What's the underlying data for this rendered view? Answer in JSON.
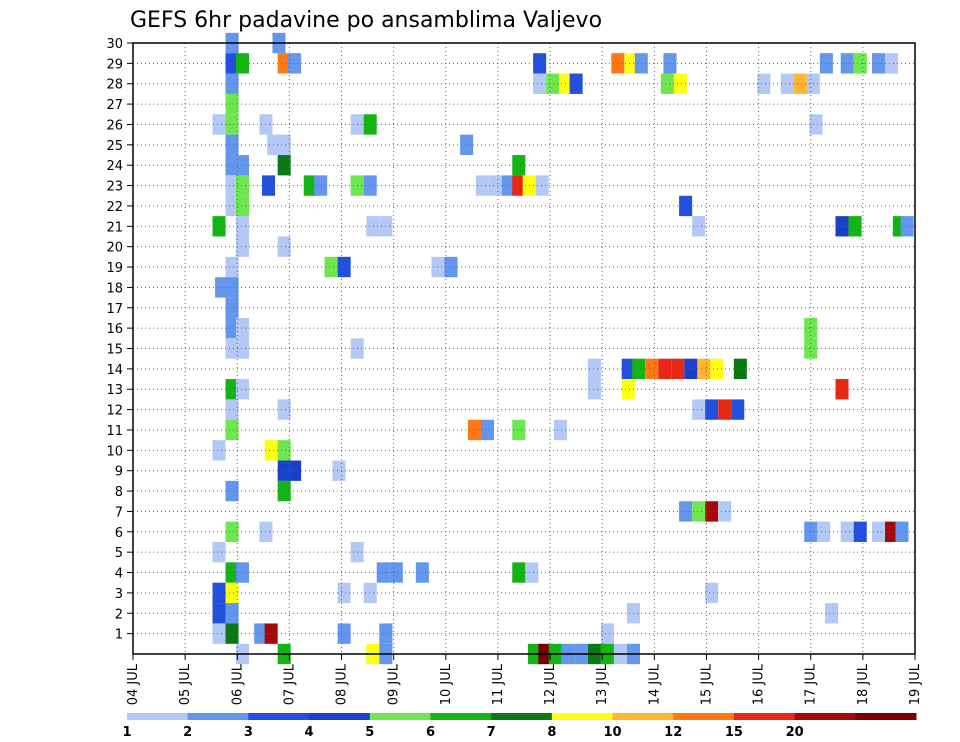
{
  "chart_data": {
    "type": "heatmap",
    "title": "GEFS 6hr padavine po ansamblima Valjevo",
    "xlabel": "",
    "ylabel": "",
    "x_tick_labels": [
      "04 JUL",
      "05 JUL",
      "06 JUL",
      "07 JUL",
      "08 JUL",
      "09 JUL",
      "10 JUL",
      "11 JUL",
      "12 JUL",
      "13 JUL",
      "14 JUL",
      "15 JUL",
      "16 JUL",
      "17 JUL",
      "18 JUL",
      "19 JUL"
    ],
    "y_ticks": [
      1,
      2,
      3,
      4,
      5,
      6,
      7,
      8,
      9,
      10,
      11,
      12,
      13,
      14,
      15,
      16,
      17,
      18,
      19,
      20,
      21,
      22,
      23,
      24,
      25,
      26,
      27,
      28,
      29,
      30
    ],
    "xlim": [
      0,
      15
    ],
    "ylim": [
      0,
      30
    ],
    "grid": true,
    "colorbar": {
      "labels": [
        "1",
        "2",
        "3",
        "4",
        "5",
        "6",
        "7",
        "8",
        "10",
        "12",
        "15",
        "20"
      ],
      "colors": [
        "#b4c8f5",
        "#6496ee",
        "#2050dc",
        "#1840c8",
        "#6ee650",
        "#14b414",
        "#0a7814",
        "#ffff14",
        "#ffb432",
        "#ff7814",
        "#e62814",
        "#a00a0a",
        "#780000"
      ]
    },
    "cells": [
      [
        1.9,
        30,
        1
      ],
      [
        2.8,
        30,
        1
      ],
      [
        1.9,
        29,
        2
      ],
      [
        2.1,
        29,
        5
      ],
      [
        2.9,
        29,
        9
      ],
      [
        3.1,
        29,
        1
      ],
      [
        7.8,
        29,
        2
      ],
      [
        9.3,
        29,
        9
      ],
      [
        9.55,
        29,
        7
      ],
      [
        9.75,
        29,
        1
      ],
      [
        10.3,
        29,
        1
      ],
      [
        13.3,
        29,
        1
      ],
      [
        13.7,
        29,
        1
      ],
      [
        13.95,
        29,
        4
      ],
      [
        14.3,
        29,
        1
      ],
      [
        14.55,
        29,
        0
      ],
      [
        1.9,
        28,
        1
      ],
      [
        7.8,
        28,
        0
      ],
      [
        8.05,
        28,
        4
      ],
      [
        8.3,
        28,
        7
      ],
      [
        8.5,
        28,
        2
      ],
      [
        10.25,
        28,
        4
      ],
      [
        10.5,
        28,
        7
      ],
      [
        12.1,
        28,
        0
      ],
      [
        12.55,
        28,
        0
      ],
      [
        12.8,
        28,
        8
      ],
      [
        13.05,
        28,
        0
      ],
      [
        1.9,
        27,
        4
      ],
      [
        1.65,
        26,
        0
      ],
      [
        1.9,
        26,
        4
      ],
      [
        2.55,
        26,
        0
      ],
      [
        4.3,
        26,
        0
      ],
      [
        4.55,
        26,
        5
      ],
      [
        13.1,
        26,
        0
      ],
      [
        1.9,
        25,
        1
      ],
      [
        2.7,
        25,
        0
      ],
      [
        2.9,
        25,
        0
      ],
      [
        6.4,
        25,
        1
      ],
      [
        1.9,
        24,
        1
      ],
      [
        2.1,
        24,
        1
      ],
      [
        2.9,
        24,
        6
      ],
      [
        7.4,
        24,
        5
      ],
      [
        1.9,
        23,
        0
      ],
      [
        2.1,
        23,
        4
      ],
      [
        2.6,
        23,
        2
      ],
      [
        3.4,
        23,
        5
      ],
      [
        3.6,
        23,
        1
      ],
      [
        4.3,
        23,
        4
      ],
      [
        4.55,
        23,
        1
      ],
      [
        6.7,
        23,
        0
      ],
      [
        6.95,
        23,
        0
      ],
      [
        7.2,
        23,
        1
      ],
      [
        7.4,
        23,
        10
      ],
      [
        7.6,
        23,
        7
      ],
      [
        7.85,
        23,
        0
      ],
      [
        1.9,
        22,
        0
      ],
      [
        2.1,
        22,
        4
      ],
      [
        10.6,
        22,
        2
      ],
      [
        1.65,
        21,
        5
      ],
      [
        2.1,
        21,
        0
      ],
      [
        4.6,
        21,
        0
      ],
      [
        4.85,
        21,
        0
      ],
      [
        10.85,
        21,
        0
      ],
      [
        13.6,
        21,
        3
      ],
      [
        13.85,
        21,
        5
      ],
      [
        14.7,
        21,
        5
      ],
      [
        14.85,
        21,
        1
      ],
      [
        2.1,
        20,
        0
      ],
      [
        2.9,
        20,
        0
      ],
      [
        1.9,
        19,
        0
      ],
      [
        3.8,
        19,
        4
      ],
      [
        4.05,
        19,
        2
      ],
      [
        5.85,
        19,
        0
      ],
      [
        6.1,
        19,
        1
      ],
      [
        1.7,
        18,
        1
      ],
      [
        1.9,
        18,
        1
      ],
      [
        1.9,
        17,
        1
      ],
      [
        1.9,
        16,
        1
      ],
      [
        2.1,
        16,
        0
      ],
      [
        13.0,
        16,
        4
      ],
      [
        1.9,
        15,
        0
      ],
      [
        2.1,
        15,
        0
      ],
      [
        4.3,
        15,
        0
      ],
      [
        13.0,
        15,
        4
      ],
      [
        8.85,
        14,
        0
      ],
      [
        9.5,
        14,
        2
      ],
      [
        9.7,
        14,
        5
      ],
      [
        9.95,
        14,
        9
      ],
      [
        10.2,
        14,
        10
      ],
      [
        10.45,
        14,
        10
      ],
      [
        10.7,
        14,
        3
      ],
      [
        10.95,
        14,
        8
      ],
      [
        11.2,
        14,
        7
      ],
      [
        11.65,
        14,
        6
      ],
      [
        1.9,
        13,
        5
      ],
      [
        2.1,
        13,
        0
      ],
      [
        8.85,
        13,
        0
      ],
      [
        9.5,
        13,
        7
      ],
      [
        13.6,
        13,
        10
      ],
      [
        1.9,
        12,
        0
      ],
      [
        2.9,
        12,
        0
      ],
      [
        10.85,
        12,
        0
      ],
      [
        11.1,
        12,
        2
      ],
      [
        11.35,
        12,
        10
      ],
      [
        11.6,
        12,
        2
      ],
      [
        1.9,
        11,
        4
      ],
      [
        6.55,
        11,
        9
      ],
      [
        6.8,
        11,
        1
      ],
      [
        7.4,
        11,
        4
      ],
      [
        8.2,
        11,
        0
      ],
      [
        1.65,
        10,
        0
      ],
      [
        2.65,
        10,
        7
      ],
      [
        2.9,
        10,
        4
      ],
      [
        2.9,
        9,
        3
      ],
      [
        3.1,
        9,
        3
      ],
      [
        3.95,
        9,
        0
      ],
      [
        1.9,
        8,
        1
      ],
      [
        2.9,
        8,
        5
      ],
      [
        10.6,
        7,
        1
      ],
      [
        10.85,
        7,
        4
      ],
      [
        11.1,
        7,
        11
      ],
      [
        11.35,
        7,
        0
      ],
      [
        1.9,
        6,
        4
      ],
      [
        2.55,
        6,
        0
      ],
      [
        13.0,
        6,
        1
      ],
      [
        13.25,
        6,
        0
      ],
      [
        13.7,
        6,
        0
      ],
      [
        13.95,
        6,
        2
      ],
      [
        14.3,
        6,
        0
      ],
      [
        14.55,
        6,
        11
      ],
      [
        14.75,
        6,
        1
      ],
      [
        1.65,
        5,
        0
      ],
      [
        4.3,
        5,
        0
      ],
      [
        1.9,
        4,
        5
      ],
      [
        2.1,
        4,
        1
      ],
      [
        4.8,
        4,
        1
      ],
      [
        5.05,
        4,
        1
      ],
      [
        5.55,
        4,
        1
      ],
      [
        7.4,
        4,
        5
      ],
      [
        7.65,
        4,
        0
      ],
      [
        1.65,
        3,
        2
      ],
      [
        1.9,
        3,
        7
      ],
      [
        4.05,
        3,
        0
      ],
      [
        4.55,
        3,
        0
      ],
      [
        11.1,
        3,
        0
      ],
      [
        1.65,
        2,
        2
      ],
      [
        1.9,
        2,
        1
      ],
      [
        9.6,
        2,
        0
      ],
      [
        13.4,
        2,
        0
      ],
      [
        1.65,
        1,
        0
      ],
      [
        1.9,
        1,
        6
      ],
      [
        2.45,
        1,
        1
      ],
      [
        2.65,
        1,
        11
      ],
      [
        4.05,
        1,
        1
      ],
      [
        4.85,
        1,
        1
      ],
      [
        9.1,
        1,
        0
      ],
      [
        2.1,
        0,
        0
      ],
      [
        2.9,
        0,
        5
      ],
      [
        4.6,
        0,
        7
      ],
      [
        4.85,
        0,
        1
      ],
      [
        7.7,
        0,
        5
      ],
      [
        7.9,
        0,
        12
      ],
      [
        8.1,
        0,
        5
      ],
      [
        8.35,
        0,
        1
      ],
      [
        8.6,
        0,
        1
      ],
      [
        8.85,
        0,
        6
      ],
      [
        9.1,
        0,
        5
      ],
      [
        9.35,
        0,
        0
      ],
      [
        9.6,
        0,
        1
      ]
    ]
  }
}
